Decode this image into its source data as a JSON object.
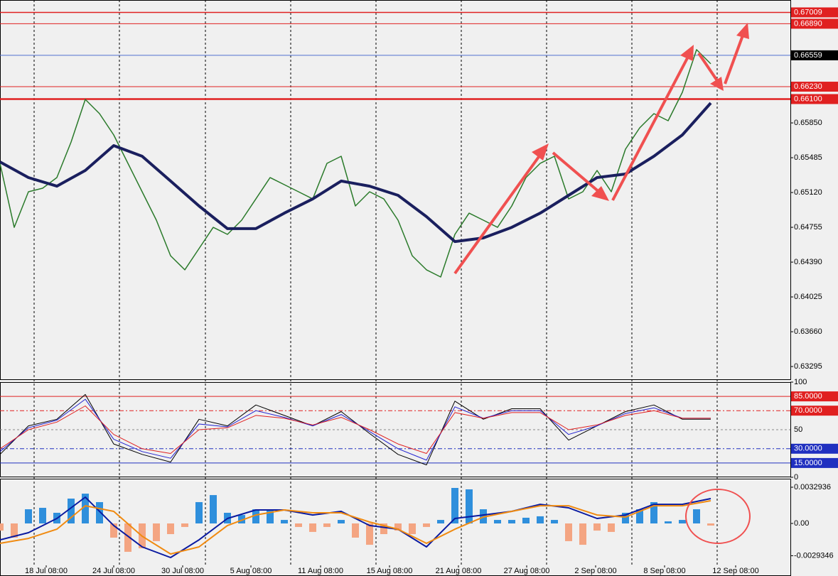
{
  "chart_data": [
    {
      "type": "line",
      "xlim": [
        0,
        55.6
      ],
      "ylim": [
        0.63154,
        0.67139
      ],
      "xticks": [
        {
          "value": 3.25,
          "label": "18 Jul 08:00"
        },
        {
          "value": 8,
          "label": "24 Jul 08:00"
        },
        {
          "value": 12.85,
          "label": "30 Jul 08:00"
        },
        {
          "value": 17.65,
          "label": "5 Aug 08:00"
        },
        {
          "value": 22.55,
          "label": "11 Aug 08:00"
        },
        {
          "value": 27.4,
          "label": "15 Aug 08:00"
        },
        {
          "value": 32.25,
          "label": "21 Aug 08:00"
        },
        {
          "value": 37.05,
          "label": "27 Aug 08:00"
        },
        {
          "value": 41.9,
          "label": "2 Sep 08:00"
        },
        {
          "value": 46.75,
          "label": "8 Sep 08:00"
        },
        {
          "value": 51.75,
          "label": "12 Sep 08:00"
        }
      ],
      "yticks": [
        {
          "value": 0.6585,
          "label": "0.65850"
        },
        {
          "value": 0.65485,
          "label": "0.65485"
        },
        {
          "value": 0.6512,
          "label": "0.65120"
        },
        {
          "value": 0.64755,
          "label": "0.64755"
        },
        {
          "value": 0.6439,
          "label": "0.64390"
        },
        {
          "value": 0.64025,
          "label": "0.64025"
        },
        {
          "value": 0.6366,
          "label": "0.63660"
        },
        {
          "value": 0.63295,
          "label": "0.63295"
        }
      ],
      "levels": [
        {
          "value": 0.67009,
          "label": "0.67009",
          "color": "#e02020",
          "box": "#e02020",
          "width": 1.5
        },
        {
          "value": 0.6689,
          "label": "0.66890",
          "color": "#e02020",
          "box": "#e02020",
          "width": 1
        },
        {
          "value": 0.66559,
          "label": "0.66559",
          "color": "#5070d0",
          "box": "#000000",
          "width": 1
        },
        {
          "value": 0.6623,
          "label": "0.66230",
          "color": "#e02020",
          "box": "#e02020",
          "width": 1
        },
        {
          "value": 0.661,
          "label": "0.66100",
          "color": "#e02020",
          "box": "#e02020",
          "width": 2.5
        }
      ],
      "series": [
        {
          "color": "#2a7a2a",
          "width": 1.5,
          "x": [
            0,
            1,
            2,
            3,
            4,
            5,
            6,
            7,
            8,
            9,
            10,
            11,
            12,
            13,
            14,
            15,
            16,
            17,
            18,
            19,
            20,
            21,
            22,
            23,
            24,
            25,
            26,
            27,
            28,
            29,
            30,
            31,
            32,
            33,
            34,
            35,
            36,
            37,
            38,
            39,
            40,
            41,
            42,
            43,
            44,
            45,
            46,
            47,
            48,
            49,
            50
          ],
          "values": [
            0.65426,
            0.64755,
            0.65128,
            0.65165,
            0.65277,
            0.65649,
            0.66096,
            0.65947,
            0.65724,
            0.65426,
            0.65128,
            0.6483,
            0.64457,
            0.64309,
            0.64532,
            0.64755,
            0.64681,
            0.6483,
            0.65053,
            0.65277,
            0.65202,
            0.65128,
            0.65053,
            0.65426,
            0.655,
            0.64979,
            0.65128,
            0.65053,
            0.6483,
            0.64457,
            0.64309,
            0.64234,
            0.64681,
            0.64904,
            0.6483,
            0.64755,
            0.64979,
            0.65277,
            0.65426,
            0.655,
            0.65053,
            0.65128,
            0.65351,
            0.65128,
            0.65575,
            0.65798,
            0.65947,
            0.65873,
            0.66171,
            0.66618,
            0.66469
          ]
        },
        {
          "color": "#1a1f5e",
          "width": 4,
          "x": [
            0,
            2,
            4,
            6,
            8,
            10,
            12,
            14,
            16,
            18,
            20,
            22,
            24,
            26,
            28,
            30,
            32,
            34,
            36,
            38,
            40,
            42,
            44,
            46,
            48,
            50
          ],
          "values": [
            0.65441,
            0.65277,
            0.65187,
            0.65351,
            0.65612,
            0.655,
            0.6524,
            0.64979,
            0.64741,
            0.64741,
            0.64904,
            0.65053,
            0.6524,
            0.65187,
            0.65091,
            0.64867,
            0.64606,
            0.64644,
            0.64755,
            0.64904,
            0.65091,
            0.65277,
            0.65314,
            0.655,
            0.65724,
            0.66059
          ]
        }
      ]
    },
    {
      "type": "line",
      "xlim": [
        0,
        55.6
      ],
      "ylim": [
        0,
        100
      ],
      "yticks": [
        100,
        0
      ],
      "levels": [
        {
          "value": 85,
          "label": "85.0000",
          "color": "#e02020",
          "box": "#e02020",
          "width": 1
        },
        {
          "value": 70,
          "label": "70.0000",
          "color": "#e02020",
          "box": "#e02020",
          "width": 1,
          "dash": "6 3 2 3"
        },
        {
          "value": 50,
          "label": "50",
          "color": "#888888",
          "width": 1,
          "dash": "3 3"
        },
        {
          "value": 30,
          "label": "30.0000",
          "color": "#2030c0",
          "box": "#2030c0",
          "width": 1,
          "dash": "6 3 2 3"
        },
        {
          "value": 15,
          "label": "15.0000",
          "color": "#2030c0",
          "box": "#2030c0",
          "width": 1
        }
      ],
      "series": [
        {
          "color": "#000000",
          "width": 1,
          "x": [
            0,
            2,
            4,
            6,
            8,
            10,
            12,
            14,
            16,
            18,
            20,
            22,
            24,
            26,
            28,
            30,
            32,
            34,
            36,
            38,
            40,
            42,
            44,
            46,
            48,
            50
          ],
          "values": [
            24,
            54,
            61,
            87,
            35,
            24,
            16,
            61,
            54,
            76,
            65,
            54,
            69,
            46,
            24,
            13,
            80,
            61,
            72,
            72,
            39,
            54,
            69,
            76,
            61,
            61
          ]
        },
        {
          "color": "#2020d0",
          "width": 1,
          "x": [
            0,
            2,
            4,
            6,
            8,
            10,
            12,
            14,
            16,
            18,
            20,
            22,
            24,
            26,
            28,
            30,
            32,
            34,
            36,
            38,
            40,
            42,
            44,
            46,
            48,
            50
          ],
          "values": [
            27,
            52,
            60,
            82,
            40,
            27,
            20,
            56,
            53,
            70,
            63,
            54,
            66,
            48,
            30,
            18,
            74,
            62,
            70,
            70,
            45,
            54,
            67,
            73,
            62,
            62
          ]
        },
        {
          "color": "#e02020",
          "width": 1,
          "x": [
            0,
            2,
            4,
            6,
            8,
            10,
            12,
            14,
            16,
            18,
            20,
            22,
            24,
            26,
            28,
            30,
            32,
            34,
            36,
            38,
            40,
            42,
            44,
            46,
            48,
            50
          ],
          "values": [
            30,
            50,
            58,
            75,
            45,
            30,
            25,
            50,
            52,
            65,
            62,
            55,
            63,
            50,
            35,
            25,
            68,
            62,
            68,
            68,
            50,
            55,
            65,
            70,
            62,
            62
          ]
        }
      ]
    },
    {
      "type": "bar",
      "xlim": [
        0,
        55.6
      ],
      "ylim": [
        -0.00478,
        0.00407
      ],
      "yticks": [
        0.0032936,
        {
          "value": 0,
          "label": "0.00"
        },
        -0.0029346
      ],
      "up_color": "#2f8fdc",
      "down_color": "#f4a582",
      "x": [
        0,
        1,
        2,
        3,
        4,
        5,
        6,
        7,
        8,
        9,
        10,
        11,
        12,
        13,
        14,
        15,
        16,
        17,
        18,
        19,
        20,
        21,
        22,
        23,
        24,
        25,
        26,
        27,
        28,
        29,
        30,
        31,
        32,
        33,
        34,
        35,
        36,
        37,
        38,
        39,
        40,
        41,
        42,
        43,
        44,
        45,
        46,
        47,
        48,
        49,
        50
      ],
      "values": [
        -0.00065,
        -0.00129,
        0.00129,
        0.00142,
        0.00097,
        0.00226,
        0.00271,
        0.00194,
        -0.00129,
        -0.00258,
        -0.00226,
        -0.00161,
        -0.00097,
        -0.00032,
        0.00194,
        0.00258,
        0.00097,
        0.00077,
        0.00129,
        0.00116,
        0.00032,
        -0.00032,
        -0.00077,
        -0.00032,
        0.00032,
        -0.00129,
        -0.00194,
        -0.00097,
        -0.00065,
        -0.00097,
        -0.00032,
        0.00032,
        0.00323,
        0.0031,
        0.00129,
        0.00032,
        0.00032,
        0.00052,
        0.00065,
        0.00032,
        -0.00161,
        -0.00194,
        -0.00065,
        -0.00077,
        0.00097,
        0.00129,
        0.00194,
        0.00019,
        0.00032,
        0.00129,
        -0.00019
      ],
      "series": [
        {
          "color": "#0a1aa0",
          "width": 2,
          "x": [
            0,
            2,
            4,
            6,
            8,
            10,
            12,
            14,
            16,
            18,
            20,
            22,
            24,
            26,
            28,
            30,
            32,
            34,
            36,
            38,
            40,
            42,
            44,
            46,
            48,
            50
          ],
          "values": [
            -0.00149,
            -0.00084,
            0.00045,
            0.00239,
            -0.00019,
            -0.00213,
            -0.0031,
            -0.00149,
            0.00045,
            0.00123,
            0.00123,
            0.00077,
            0.0011,
            -0.00019,
            -0.00052,
            -0.00213,
            0.00045,
            0.00077,
            0.0011,
            0.00174,
            0.00142,
            0.00045,
            0.00077,
            0.00174,
            0.00174,
            0.00226
          ]
        },
        {
          "color": "#f08a10",
          "width": 2,
          "x": [
            0,
            2,
            4,
            6,
            8,
            10,
            12,
            14,
            16,
            18,
            20,
            22,
            24,
            26,
            28,
            30,
            32,
            34,
            36,
            38,
            40,
            42,
            44,
            46,
            48,
            50
          ],
          "values": [
            -0.00181,
            -0.00136,
            -0.00052,
            0.00161,
            0.0011,
            -0.00116,
            -0.00278,
            -0.00213,
            -0.00019,
            0.00077,
            0.00123,
            0.00097,
            0.00097,
            0.00013,
            -0.00052,
            -0.00181,
            -0.00052,
            0.00058,
            0.0011,
            0.00161,
            0.00161,
            0.00077,
            0.00058,
            0.00161,
            0.00161,
            0.00207
          ]
        }
      ]
    }
  ]
}
